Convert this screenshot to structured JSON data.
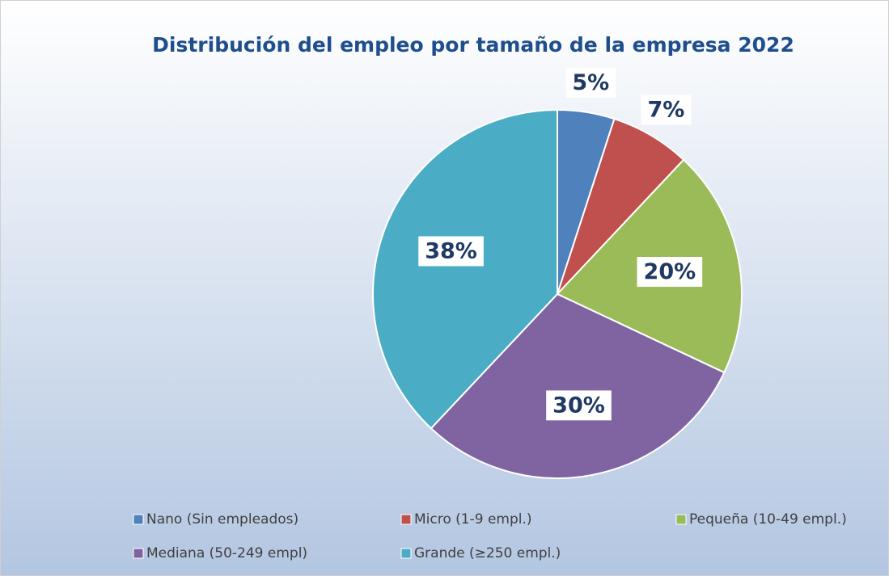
{
  "chart_data": {
    "type": "pie",
    "title": "Distribución del empleo por tamaño de la empresa 2022",
    "categories": [
      "Nano (Sin empleados)",
      "Micro (1-9 empl.)",
      "Pequeña (10-49 empl.)",
      "Mediana (50-249 empl)",
      "Grande (≥250 empl.)"
    ],
    "values": [
      5,
      7,
      20,
      30,
      38
    ],
    "value_labels": [
      "5%",
      "7%",
      "20%",
      "30%",
      "38%"
    ],
    "colors": [
      "#4f81bd",
      "#c0504d",
      "#9bbb59",
      "#8064a2",
      "#4bacc6"
    ]
  }
}
